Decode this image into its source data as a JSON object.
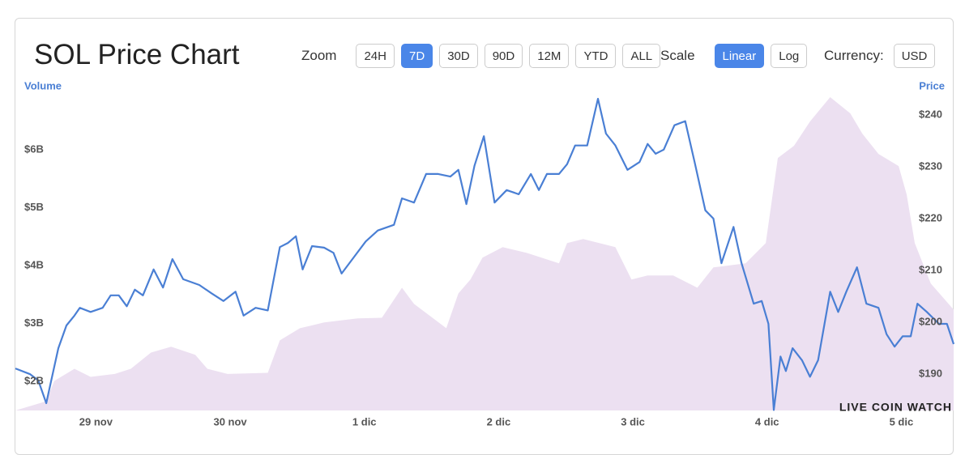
{
  "header": {
    "title": "SOL Price Chart",
    "zoom": {
      "label": "Zoom",
      "options": [
        "24H",
        "7D",
        "30D",
        "90D",
        "12M",
        "YTD",
        "ALL"
      ],
      "active": "7D"
    },
    "scale": {
      "label": "Scale",
      "options": [
        "Linear",
        "Log"
      ],
      "active": "Linear"
    },
    "currency": {
      "label": "Currency:",
      "value": "USD"
    }
  },
  "watermark": "LIVE COIN WATCH",
  "chart_data": {
    "type": "line",
    "ylabel": "Volume",
    "y2label": "Price",
    "xlim": [
      -0.6,
      6.39
    ],
    "xticks": [
      {
        "value": 0,
        "label": "29 nov"
      },
      {
        "value": 1,
        "label": "30 nov"
      },
      {
        "value": 2,
        "label": "1 dic"
      },
      {
        "value": 3,
        "label": "2 dic"
      },
      {
        "value": 4,
        "label": "3 dic"
      },
      {
        "value": 5,
        "label": "4 dic"
      },
      {
        "value": 6,
        "label": "5 dic"
      }
    ],
    "ylim": [
      1.5,
      6.98
    ],
    "yticks": [
      {
        "value": 2,
        "label": "$2B"
      },
      {
        "value": 3,
        "label": "$3B"
      },
      {
        "value": 4,
        "label": "$4B"
      },
      {
        "value": 5,
        "label": "$5B"
      },
      {
        "value": 6,
        "label": "$6B"
      }
    ],
    "y2lim": [
      183,
      244.2
    ],
    "y2ticks": [
      {
        "value": 190,
        "label": "$190"
      },
      {
        "value": 200,
        "label": "$200"
      },
      {
        "value": 210,
        "label": "$210"
      },
      {
        "value": 220,
        "label": "$220"
      },
      {
        "value": 230,
        "label": "$230"
      },
      {
        "value": 240,
        "label": "$240"
      }
    ],
    "series": [
      {
        "type": "area",
        "color": "#ece0f1",
        "x": [
          -0.6,
          -0.37,
          -0.31,
          -0.16,
          -0.04,
          0.14,
          0.26,
          0.41,
          0.56,
          0.74,
          0.83,
          0.98,
          1.28,
          1.37,
          1.52,
          1.7,
          1.95,
          2.13,
          2.28,
          2.37,
          2.49,
          2.61,
          2.7,
          2.79,
          2.88,
          3.03,
          3.21,
          3.45,
          3.51,
          3.63,
          3.87,
          3.99,
          4.11,
          4.3,
          4.48,
          4.6,
          4.84,
          4.99,
          5.08,
          5.2,
          5.32,
          5.47,
          5.62,
          5.71,
          5.83,
          5.98,
          6.04,
          6.1,
          6.22,
          6.39
        ],
        "values": [
          1.5,
          1.66,
          2.01,
          2.22,
          2.08,
          2.13,
          2.22,
          2.5,
          2.6,
          2.46,
          2.22,
          2.13,
          2.15,
          2.71,
          2.92,
          3.02,
          3.09,
          3.1,
          3.62,
          3.34,
          3.13,
          2.92,
          3.52,
          3.76,
          4.14,
          4.32,
          4.22,
          4.04,
          4.39,
          4.46,
          4.32,
          3.76,
          3.83,
          3.83,
          3.62,
          3.97,
          4.04,
          4.39,
          5.86,
          6.07,
          6.49,
          6.91,
          6.63,
          6.28,
          5.93,
          5.72,
          5.23,
          4.39,
          3.69,
          3.24
        ]
      },
      {
        "type": "line",
        "color": "#4a7fd4",
        "axis": "y2",
        "x": [
          -0.6,
          -0.49,
          -0.43,
          -0.37,
          -0.33,
          -0.28,
          -0.22,
          -0.16,
          -0.12,
          -0.04,
          0.05,
          0.11,
          0.17,
          0.23,
          0.29,
          0.35,
          0.43,
          0.5,
          0.57,
          0.65,
          0.77,
          0.86,
          0.95,
          1.04,
          1.1,
          1.19,
          1.28,
          1.37,
          1.43,
          1.49,
          1.54,
          1.61,
          1.7,
          1.77,
          1.83,
          1.92,
          2.01,
          2.1,
          2.22,
          2.28,
          2.37,
          2.46,
          2.55,
          2.64,
          2.7,
          2.76,
          2.82,
          2.89,
          2.97,
          3.06,
          3.15,
          3.24,
          3.3,
          3.36,
          3.45,
          3.51,
          3.57,
          3.66,
          3.74,
          3.8,
          3.87,
          3.96,
          4.05,
          4.11,
          4.17,
          4.23,
          4.31,
          4.39,
          4.46,
          4.54,
          4.6,
          4.66,
          4.75,
          4.81,
          4.9,
          4.96,
          5.01,
          5.05,
          5.1,
          5.14,
          5.19,
          5.26,
          5.32,
          5.38,
          5.47,
          5.53,
          5.59,
          5.67,
          5.74,
          5.83,
          5.89,
          5.95,
          6.01,
          6.07,
          6.12,
          6.19,
          6.28,
          6.34,
          6.39
        ],
        "values": [
          191.1,
          190.0,
          188.8,
          184.4,
          189.1,
          195.0,
          199.4,
          201.3,
          202.8,
          202.0,
          202.8,
          205.2,
          205.2,
          203.1,
          206.3,
          205.2,
          210.2,
          206.7,
          212.2,
          208.3,
          207.2,
          205.6,
          204.1,
          205.9,
          201.3,
          202.8,
          202.3,
          214.5,
          215.3,
          216.6,
          210.2,
          214.7,
          214.4,
          213.4,
          209.4,
          212.5,
          215.6,
          217.7,
          218.8,
          223.9,
          223.1,
          228.6,
          228.6,
          228.1,
          229.4,
          222.8,
          230.2,
          235.9,
          223.1,
          225.5,
          224.7,
          228.6,
          225.5,
          228.6,
          228.6,
          230.5,
          234.1,
          234.1,
          243.1,
          236.4,
          234.1,
          229.4,
          230.9,
          234.4,
          232.5,
          233.3,
          238.0,
          238.8,
          230.9,
          221.6,
          220.0,
          211.4,
          218.4,
          211.4,
          203.6,
          204.1,
          199.7,
          183.1,
          193.4,
          190.6,
          195.0,
          192.7,
          189.5,
          192.7,
          205.9,
          202.0,
          205.9,
          210.6,
          203.6,
          202.8,
          197.7,
          195.3,
          197.3,
          197.3,
          203.6,
          202.0,
          199.7,
          199.7,
          195.8
        ]
      }
    ]
  }
}
